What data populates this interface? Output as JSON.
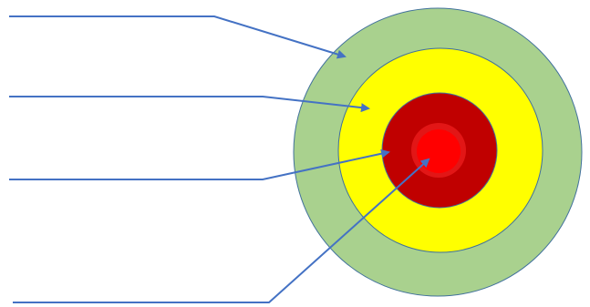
{
  "diagram": {
    "rings": [
      {
        "name": "outer-ring",
        "fill": "#A9D18E"
      },
      {
        "name": "middle-ring",
        "fill": "#FFFF00"
      },
      {
        "name": "inner-ring",
        "fill": "#C00000"
      },
      {
        "name": "core-halo",
        "fill": "#E21616"
      },
      {
        "name": "core",
        "fill": "#FF0000"
      }
    ],
    "leader_line_color": "#4472C4",
    "ring_outline_color": "#41719C",
    "labels": [
      "",
      "",
      "",
      ""
    ]
  }
}
